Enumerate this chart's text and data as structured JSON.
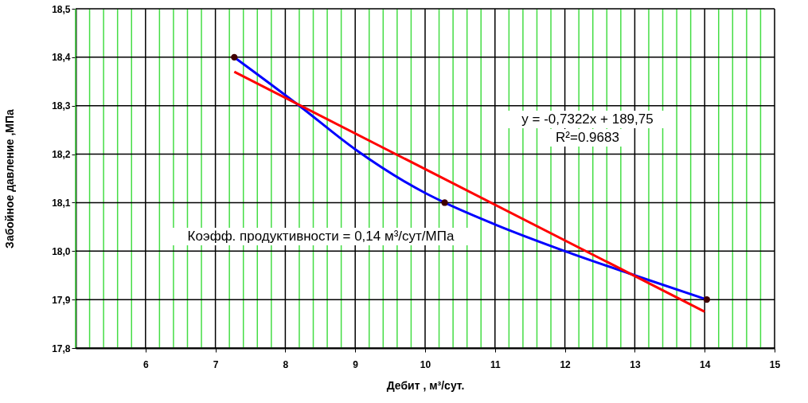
{
  "chart_data": {
    "type": "scatter",
    "xlabel": "Дебит , м³/сут.",
    "ylabel": "Забойное давление ,МПа",
    "xlim": [
      5,
      15
    ],
    "ylim": [
      17.8,
      18.5
    ],
    "xticks": [
      {
        "value": 5,
        "label": null
      },
      {
        "value": 5.2,
        "label": null
      },
      {
        "value": 5.4,
        "label": null
      },
      {
        "value": 5.6,
        "label": null
      },
      {
        "value": 5.8,
        "label": null
      },
      6,
      {
        "value": 6.2,
        "label": null
      },
      {
        "value": 6.4,
        "label": null
      },
      {
        "value": 6.6,
        "label": null
      },
      {
        "value": 6.8,
        "label": null
      },
      7,
      {
        "value": 7.2,
        "label": null
      },
      {
        "value": 7.4,
        "label": null
      },
      {
        "value": 7.6,
        "label": null
      },
      {
        "value": 7.8,
        "label": null
      },
      8,
      {
        "value": 8.2,
        "label": null
      },
      {
        "value": 8.4,
        "label": null
      },
      {
        "value": 8.6,
        "label": null
      },
      {
        "value": 8.8,
        "label": null
      },
      9,
      {
        "value": 9.2,
        "label": null
      },
      {
        "value": 9.4,
        "label": null
      },
      {
        "value": 9.6,
        "label": null
      },
      {
        "value": 9.8,
        "label": null
      },
      10,
      {
        "value": 10.2,
        "label": null
      },
      {
        "value": 10.4,
        "label": null
      },
      {
        "value": 10.6,
        "label": null
      },
      {
        "value": 10.8,
        "label": null
      },
      11,
      {
        "value": 11.2,
        "label": null
      },
      {
        "value": 11.4,
        "label": null
      },
      {
        "value": 11.6,
        "label": null
      },
      {
        "value": 11.8,
        "label": null
      },
      12,
      {
        "value": 12.2,
        "label": null
      },
      {
        "value": 12.4,
        "label": null
      },
      {
        "value": 12.6,
        "label": null
      },
      {
        "value": 12.8,
        "label": null
      },
      13,
      {
        "value": 13.2,
        "label": null
      },
      {
        "value": 13.4,
        "label": null
      },
      {
        "value": 13.6,
        "label": null
      },
      {
        "value": 13.8,
        "label": null
      },
      14,
      {
        "value": 14.2,
        "label": null
      },
      {
        "value": 14.4,
        "label": null
      },
      {
        "value": 14.6,
        "label": null
      },
      {
        "value": 14.8,
        "label": null
      },
      15
    ],
    "yticks": [
      {
        "value": 17.8,
        "label": "17,8"
      },
      {
        "value": 17.9,
        "label": "17,9"
      },
      {
        "value": 18.0,
        "label": "18,0"
      },
      {
        "value": 18.1,
        "label": "18,1"
      },
      {
        "value": 18.2,
        "label": "18,2"
      },
      {
        "value": 18.3,
        "label": "18,3"
      },
      {
        "value": 18.4,
        "label": "18,4"
      },
      {
        "value": 18.5,
        "label": "18,5"
      }
    ],
    "grid": true,
    "series": [
      {
        "type": "line",
        "color": "#0000ff",
        "x": [
          7.27,
          8.2,
          9,
          10,
          10.28,
          11,
          12,
          13,
          14.03
        ],
        "values": [
          18.4,
          18.3,
          18.21,
          18.12,
          18.1,
          18.055,
          18.0,
          17.95,
          17.9
        ]
      },
      {
        "type": "line",
        "color": "#ff0000",
        "x": [
          7.27,
          14.0
        ],
        "values": [
          18.37,
          17.875
        ]
      },
      {
        "color": "#400000",
        "marker": "circle",
        "x": [
          7.27,
          10.28,
          14.03
        ],
        "values": [
          18.4,
          18.1,
          17.9
        ]
      }
    ],
    "annotations": [
      "y = -0,7322x + 189,75",
      "R²=0.9683",
      "Коэфф. продуктивности = 0,14 м³/сут/МПа"
    ]
  }
}
